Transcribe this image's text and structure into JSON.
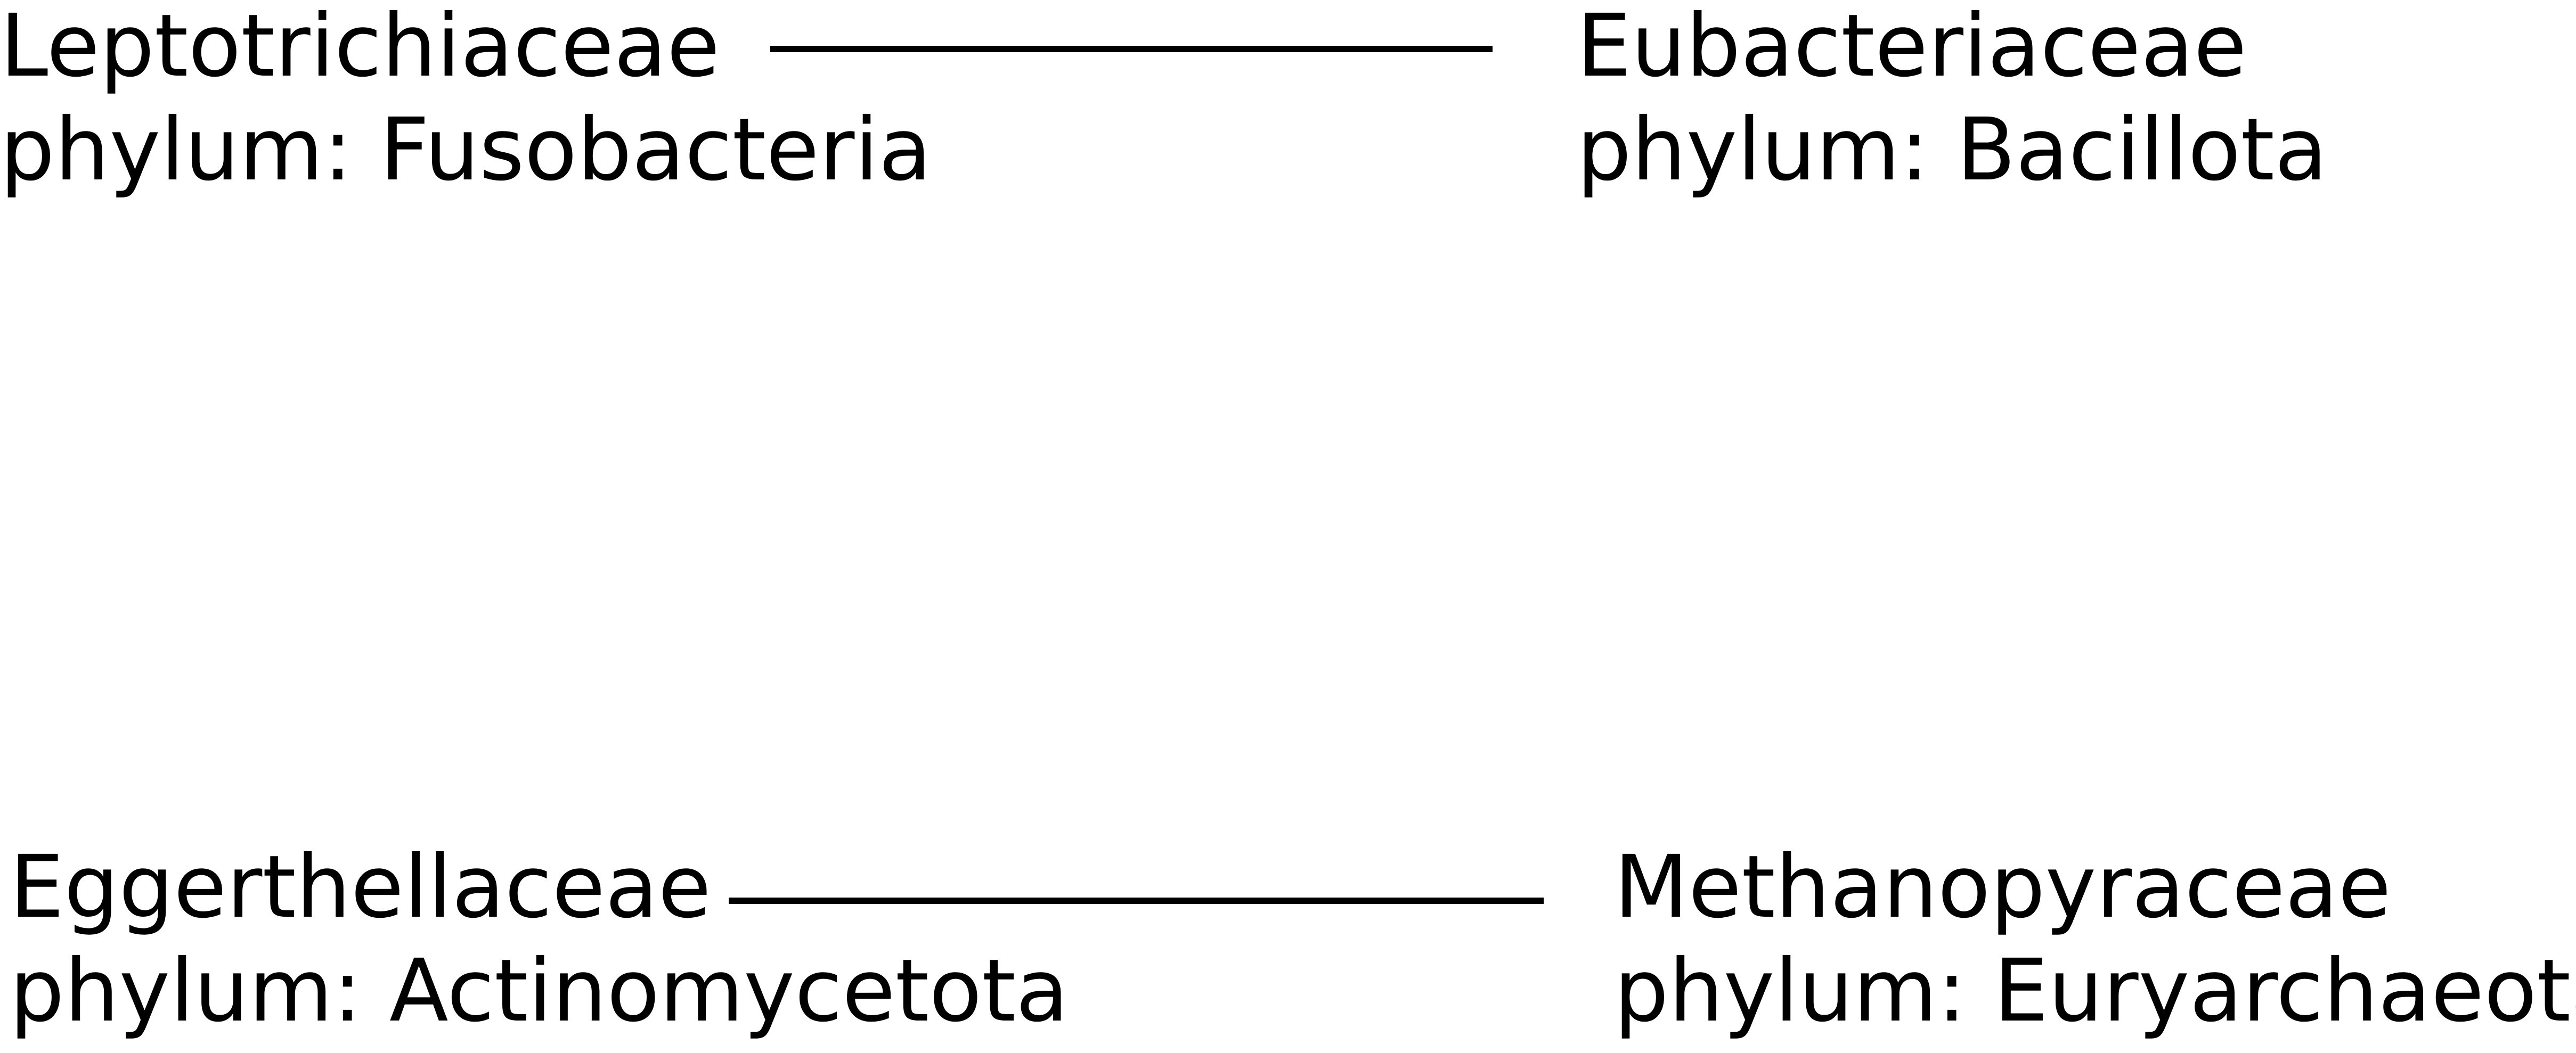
{
  "colors": {
    "background": "#ffffff",
    "text": "#000000",
    "edge": "#000000"
  },
  "nodes": [
    {
      "name": "Leptotrichiaceae",
      "phylum": "phylum: Fusobacteria"
    },
    {
      "name": "Eubacteriaceae",
      "phylum": "phylum: Bacillota"
    },
    {
      "name": "Eggerthellaceae",
      "phylum": "phylum: Actinomycetota"
    },
    {
      "name": "Methanopyraceae",
      "phylum": "phylum: Euryarchaeota"
    }
  ],
  "edges": [
    {
      "from": "Leptotrichiaceae",
      "to": "Eubacteriaceae"
    },
    {
      "from": "Eggerthellaceae",
      "to": "Methanopyraceae"
    }
  ]
}
